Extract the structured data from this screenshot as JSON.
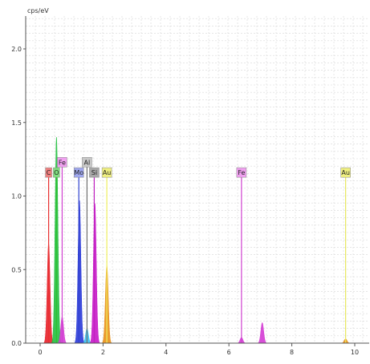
{
  "chart_data": {
    "type": "area",
    "title": "",
    "xlabel": "",
    "ylabel": "cps/eV",
    "xlim": [
      -0.5,
      10.2
    ],
    "ylim": [
      0,
      2.15
    ],
    "x_ticks": [
      "0",
      "2",
      "4",
      "6",
      "8",
      "10"
    ],
    "y_ticks": [
      "0.0",
      "0.5",
      "1.0",
      "1.5",
      "2.0"
    ],
    "grid": true,
    "series": [
      {
        "name": "C",
        "color": "#e8202a",
        "peaks": [
          {
            "x": 0.27,
            "y": 0.68
          }
        ]
      },
      {
        "name": "O",
        "color": "#22c040",
        "peaks": [
          {
            "x": 0.52,
            "y": 1.4
          }
        ]
      },
      {
        "name": "Fe",
        "color": "#d43cd4",
        "peaks": [
          {
            "x": 0.7,
            "y": 0.18
          },
          {
            "x": 6.4,
            "y": 0.04
          },
          {
            "x": 7.06,
            "y": 0.14
          }
        ]
      },
      {
        "name": "Mo",
        "color": "#2a3ad8",
        "peaks": [
          {
            "x": 1.25,
            "y": 0.97
          }
        ]
      },
      {
        "name": "Al",
        "color": "#38c0f0",
        "peaks": [
          {
            "x": 1.49,
            "y": 0.1
          }
        ]
      },
      {
        "name": "Si",
        "color": "#c818c8",
        "peaks": [
          {
            "x": 1.74,
            "y": 0.95
          }
        ]
      },
      {
        "name": "Au",
        "color": "#e89018",
        "peaks": [
          {
            "x": 2.12,
            "y": 0.53
          },
          {
            "x": 9.71,
            "y": 0.03
          }
        ]
      }
    ],
    "labels": [
      {
        "text": "C",
        "x": 0.27,
        "y": 1.16,
        "color": "#f08080",
        "marker_color": "#e83030"
      },
      {
        "text": "O",
        "x": 0.52,
        "y": 1.16,
        "color": "#80e080",
        "marker_color": "#30c030"
      },
      {
        "text": "Fe",
        "x": 0.7,
        "y": 1.23,
        "color": "#f0a0f0",
        "marker_color": "#d040d0"
      },
      {
        "text": "Mo",
        "x": 1.23,
        "y": 1.16,
        "color": "#a0a8f0",
        "marker_color": "#3040d0"
      },
      {
        "text": "Al",
        "x": 1.49,
        "y": 1.23,
        "color": "#c8c8c8",
        "marker_color": "#707070"
      },
      {
        "text": "Si",
        "x": 1.72,
        "y": 1.16,
        "color": "#a8a8a8",
        "marker_color": "#c020c0"
      },
      {
        "text": "Au",
        "x": 2.12,
        "y": 1.16,
        "color": "#f0f080",
        "marker_color": "#f0f060"
      },
      {
        "text": "Fe",
        "x": 6.4,
        "y": 1.16,
        "color": "#f0a0f0",
        "marker_color": "#d040d0"
      },
      {
        "text": "Au",
        "x": 9.71,
        "y": 1.16,
        "color": "#f0f080",
        "marker_color": "#e8e860"
      }
    ]
  }
}
